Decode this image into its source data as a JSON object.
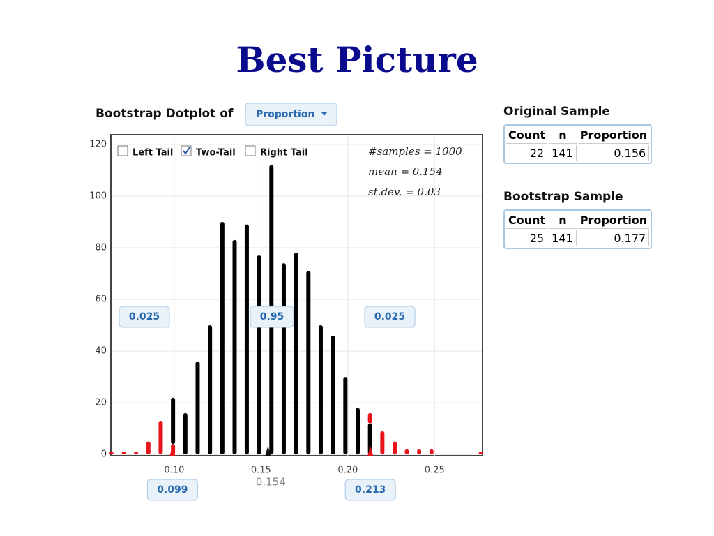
{
  "title": "Best Picture",
  "controls": {
    "label": "Bootstrap Dotplot of",
    "dropdown": "Proportion",
    "checkboxes": [
      {
        "label": "Left Tail",
        "checked": false
      },
      {
        "label": "Two-Tail",
        "checked": true
      },
      {
        "label": "Right Tail",
        "checked": false
      }
    ]
  },
  "chart_data": {
    "type": "dotplot",
    "x": [
      0.0638,
      0.0709,
      0.078,
      0.0851,
      0.0922,
      0.0993,
      0.1064,
      0.1135,
      0.1206,
      0.1277,
      0.1348,
      0.1418,
      0.1489,
      0.156,
      0.1631,
      0.1702,
      0.1773,
      0.1844,
      0.1915,
      0.1986,
      0.2057,
      0.2128,
      0.2199,
      0.227,
      0.234,
      0.2411,
      0.2482,
      0.2553,
      0.2624,
      0.2695,
      0.2766
    ],
    "series": [
      {
        "color": "#000000",
        "values": [
          0,
          0,
          0,
          0,
          0,
          18,
          16,
          36,
          50,
          90,
          83,
          89,
          77,
          112,
          74,
          78,
          71,
          50,
          46,
          30,
          18,
          12,
          0,
          0,
          0,
          0,
          0,
          0,
          0,
          0,
          0
        ]
      },
      {
        "color": "#e8141b",
        "values": [
          1,
          1,
          1,
          5,
          13,
          4,
          0,
          0,
          0,
          0,
          0,
          0,
          0,
          0,
          0,
          0,
          0,
          0,
          0,
          0,
          0,
          4,
          9,
          5,
          2,
          2,
          2,
          0,
          0,
          0,
          1
        ]
      }
    ],
    "xlim": [
      0.0639,
      0.2772
    ],
    "ylim": [
      -0.5,
      123.2
    ],
    "xticks": [
      {
        "value": 0.1,
        "label": "0.10"
      },
      {
        "value": 0.15,
        "label": "0.15"
      },
      {
        "value": 0.2,
        "label": "0.20"
      },
      0.25
    ],
    "yticks": [
      0,
      20,
      40,
      60,
      80,
      100,
      120
    ],
    "grid": true,
    "stats": [
      "#samples = 1000",
      "mean = 0.154",
      "st.dev. = 0.03"
    ],
    "tail_proportions": [
      0.025,
      0.95,
      0.025
    ],
    "cutoffs": [
      0.099,
      0.213
    ],
    "mean_marker": 0.154
  },
  "original_sample": {
    "title": "Original Sample",
    "columns": [
      "Count",
      "n",
      "Proportion"
    ],
    "rows": [
      [
        22,
        141,
        0.156
      ]
    ]
  },
  "bootstrap_sample": {
    "title": "Bootstrap Sample",
    "columns": [
      "Count",
      "n",
      "Proportion"
    ],
    "rows": [
      [
        25,
        141,
        0.177
      ]
    ]
  }
}
